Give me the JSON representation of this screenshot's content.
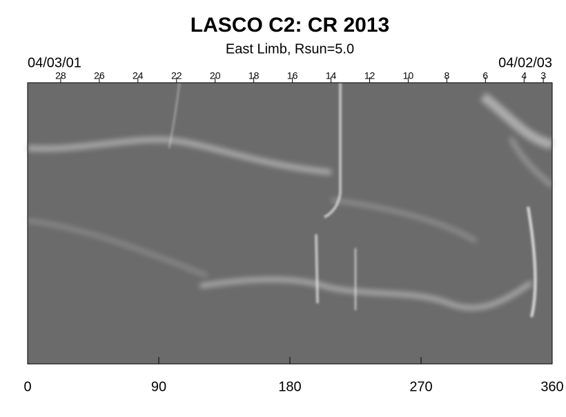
{
  "chart_data": {
    "type": "image",
    "title": "LASCO C2: CR 2013",
    "subtitle": "East Limb, Rsun=5.0",
    "xlim": [
      0,
      360
    ],
    "xticks": [
      0,
      90,
      180,
      270,
      360
    ],
    "top_axis": {
      "start_label": "04/03/01",
      "end_label": "04/02/03",
      "ticks": [
        {
          "value": 22.7,
          "label": "28"
        },
        {
          "value": 49.2,
          "label": "26"
        },
        {
          "value": 75.7,
          "label": "24"
        },
        {
          "value": 102.2,
          "label": "22"
        },
        {
          "value": 128.7,
          "label": "20"
        },
        {
          "value": 155.2,
          "label": "18"
        },
        {
          "value": 181.7,
          "label": "16"
        },
        {
          "value": 208.2,
          "label": "14"
        },
        {
          "value": 234.7,
          "label": "12"
        },
        {
          "value": 261.2,
          "label": "10"
        },
        {
          "value": 287.7,
          "label": "8"
        },
        {
          "value": 314.2,
          "label": "6"
        },
        {
          "value": 340.7,
          "label": "4"
        },
        {
          "value": 353.9,
          "label": "3"
        }
      ]
    }
  }
}
